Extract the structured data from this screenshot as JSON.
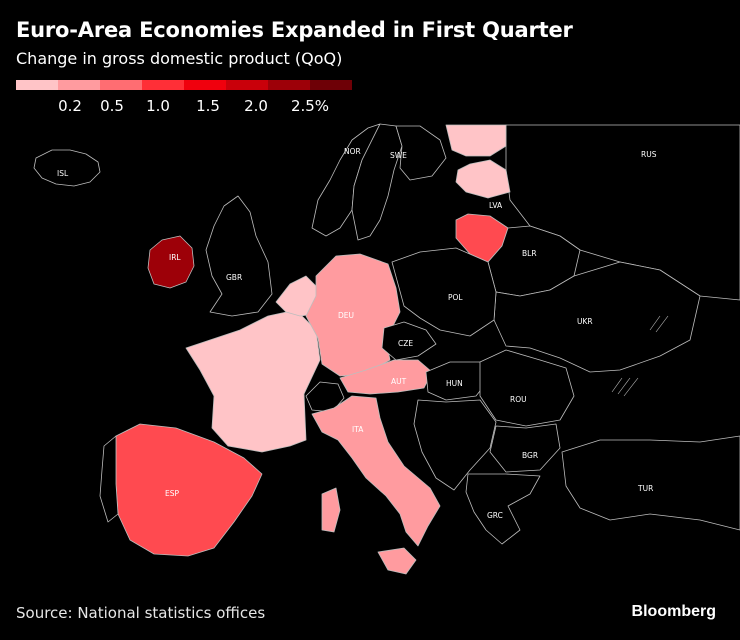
{
  "title": "Euro-Area Economies Expanded in First Quarter",
  "subtitle": "Change in gross domestic product (QoQ)",
  "legend": {
    "colors": [
      "#ffc4c7",
      "#ff9b9f",
      "#ff6d72",
      "#ff2f37",
      "#f0000d",
      "#c9000a",
      "#9d0008",
      "#6e0006"
    ],
    "ticks": [
      "0.2",
      "0.5",
      "1.0",
      "1.5",
      "2.0",
      "2.5%"
    ]
  },
  "map": {
    "shades": {
      "none": "#000000",
      "l1": "#ffc4c7",
      "l2": "#ff9b9f",
      "l3": "#ff4a50",
      "l4": "#9d0008"
    },
    "labels": {
      "isl": "ISL",
      "nor": "NOR",
      "swe": "SWE",
      "rus": "RUS",
      "lva": "LVA",
      "irl": "IRL",
      "gbr": "GBR",
      "blr": "BLR",
      "pol": "POL",
      "deu": "DEU",
      "ukr": "UKR",
      "cze": "CZE",
      "aut": "AUT",
      "hun": "HUN",
      "rou": "ROU",
      "ita": "ITA",
      "bgr": "BGR",
      "esp": "ESP",
      "tur": "TUR",
      "grc": "GRC"
    }
  },
  "source": "Source: National statistics offices",
  "brand": "Bloomberg"
}
